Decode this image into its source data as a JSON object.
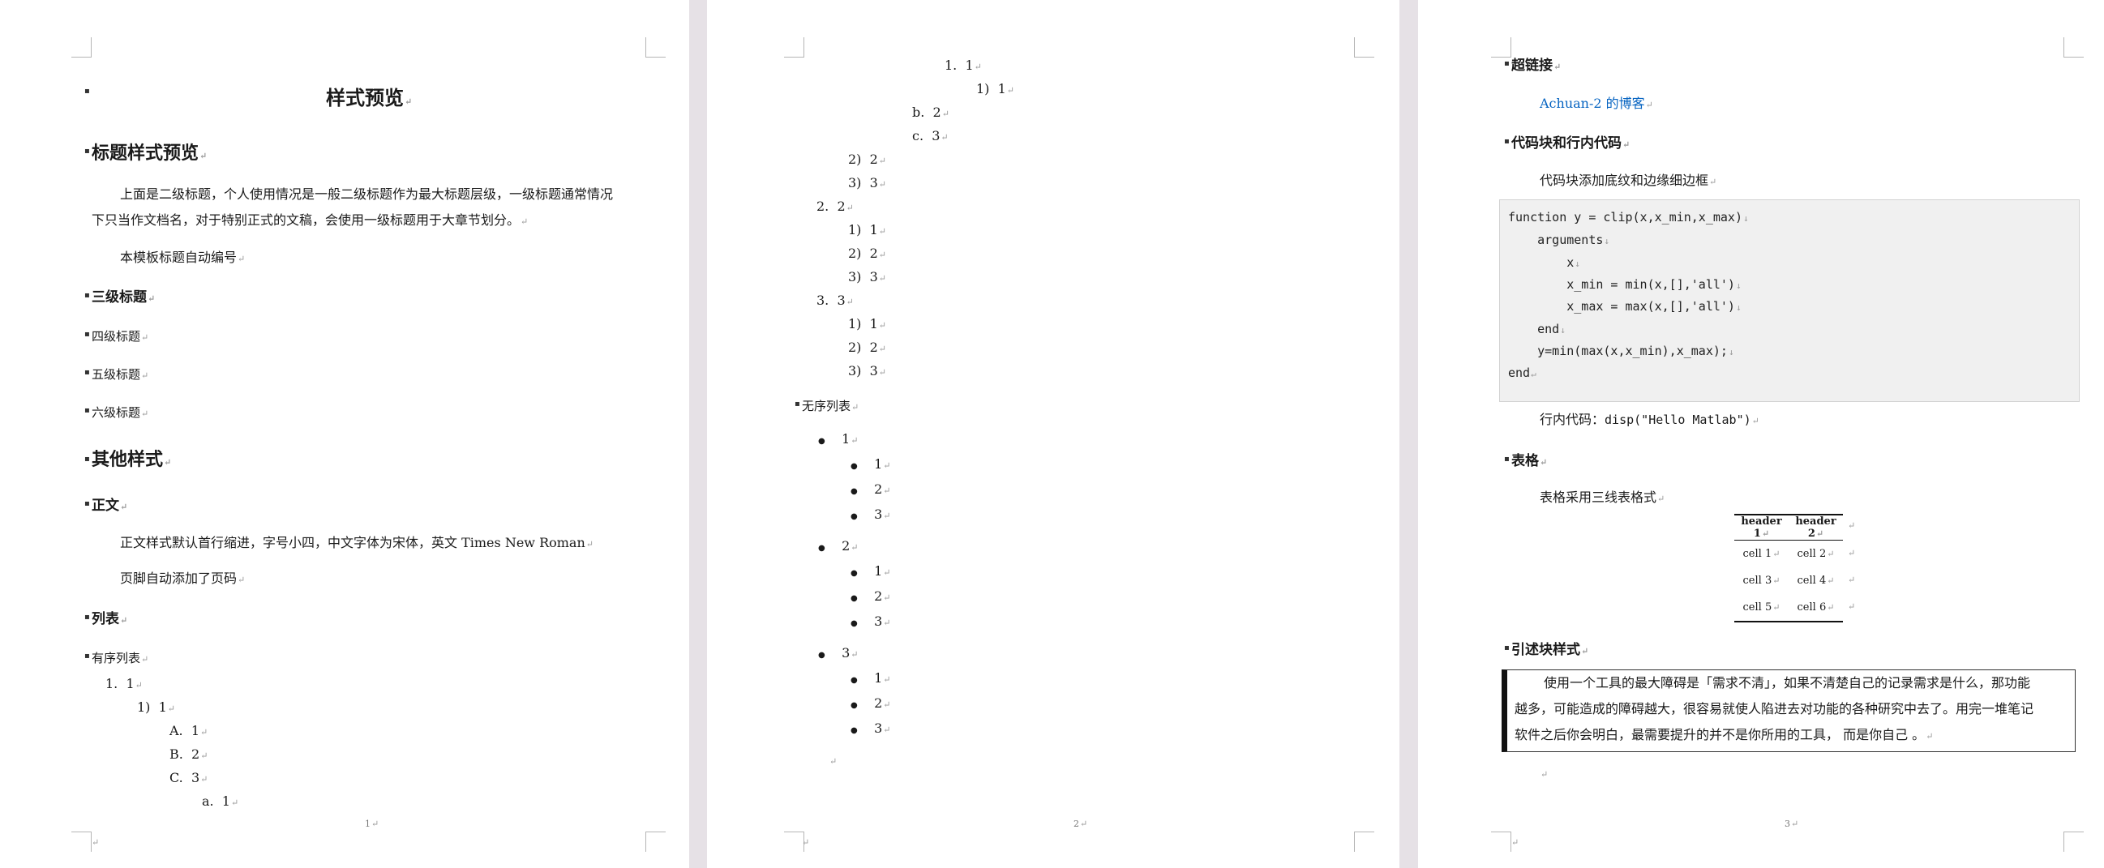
{
  "pages": [
    {
      "title": "样式预览",
      "h_title_preview": "标题样式预览",
      "para1_line1": "上面是二级标题，个人使用情况是一般二级标题作为最大标题层级，一级标题通常情况",
      "para1_line2": "下只当作文档名，对于特别正式的文稿，会使用一级标题用于大章节划分。",
      "para2": "本模板标题自动编号",
      "h3": "三级标题",
      "h4": "四级标题",
      "h5": "五级标题",
      "h6": "六级标题",
      "h_other": "其他样式",
      "h_body": "正文",
      "body_text": "正文样式默认首行缩进，字号小四，中文字体为宋体，英文 Times New Roman",
      "footer_text": "页脚自动添加了页码",
      "h_list": "列表",
      "h_ordered": "有序列表",
      "ordered_items": [
        {
          "marker": "1.",
          "text": "1"
        },
        {
          "marker": "1)",
          "text": "1"
        },
        {
          "marker": "A.",
          "text": "1"
        },
        {
          "marker": "B.",
          "text": "2"
        },
        {
          "marker": "C.",
          "text": "3"
        },
        {
          "marker": "a.",
          "text": "1"
        }
      ],
      "page_number": "1"
    },
    {
      "ordered_items": [
        {
          "marker": "1.",
          "text": "1"
        },
        {
          "marker": "1)",
          "text": "1"
        },
        {
          "marker": "b.",
          "text": "2"
        },
        {
          "marker": "c.",
          "text": "3"
        },
        {
          "marker": "2)",
          "text": "2"
        },
        {
          "marker": "3)",
          "text": "3"
        },
        {
          "marker": "2.",
          "text": "2"
        },
        {
          "marker": "1)",
          "text": "1"
        },
        {
          "marker": "2)",
          "text": "2"
        },
        {
          "marker": "3)",
          "text": "3"
        },
        {
          "marker": "3.",
          "text": "3"
        },
        {
          "marker": "1)",
          "text": "1"
        },
        {
          "marker": "2)",
          "text": "2"
        },
        {
          "marker": "3)",
          "text": "3"
        }
      ],
      "h_unordered": "无序列表",
      "unordered_items": [
        {
          "marker": "●",
          "text": "1"
        },
        {
          "marker": "●",
          "text": "1"
        },
        {
          "marker": "●",
          "text": "2"
        },
        {
          "marker": "●",
          "text": "3"
        },
        {
          "marker": "●",
          "text": "2"
        },
        {
          "marker": "●",
          "text": "1"
        },
        {
          "marker": "●",
          "text": "2"
        },
        {
          "marker": "●",
          "text": "3"
        },
        {
          "marker": "●",
          "text": "3"
        },
        {
          "marker": "●",
          "text": "1"
        },
        {
          "marker": "●",
          "text": "2"
        },
        {
          "marker": "●",
          "text": "3"
        }
      ],
      "page_number": "2"
    },
    {
      "h_link": "超链接",
      "link_text": "Achuan-2 的博客",
      "h_code": "代码块和行内代码",
      "code_desc": "代码块添加底纹和边缘细边框",
      "code_lines": [
        "function y = clip(x,x_min,x_max)",
        "    arguments",
        "        x",
        "        x_min = min(x,[],'all')",
        "        x_max = max(x,[],'all')",
        "    end",
        "    y=min(max(x,x_min),x_max);",
        "end"
      ],
      "inline_code_label": "行内代码：",
      "inline_code": "disp(\"Hello Matlab\")",
      "h_table": "表格",
      "table_desc": "表格采用三线表格式",
      "table": {
        "headers": [
          "header 1",
          "header 2"
        ],
        "rows": [
          [
            "cell 1",
            "cell 2"
          ],
          [
            "cell 3",
            "cell 4"
          ],
          [
            "cell 5",
            "cell 6"
          ]
        ]
      },
      "h_quote": "引述块样式",
      "quote_line1": "使用一个工具的最大障碍是「需求不清」，如果不清楚自己的记录需求是什么，那功能",
      "quote_line2": "越多，可能造成的障碍越大，很容易就使人陷进去对功能的各种研究中去了。用完一堆笔记",
      "quote_line3": "软件之后你会明白，最需要提升的并不是你所用的工具， 而是你自己 。",
      "page_number": "3"
    }
  ],
  "colors": {
    "link": "#0563c1",
    "code_bg": "#f0f0f0",
    "gap": "#e6e1e6"
  }
}
